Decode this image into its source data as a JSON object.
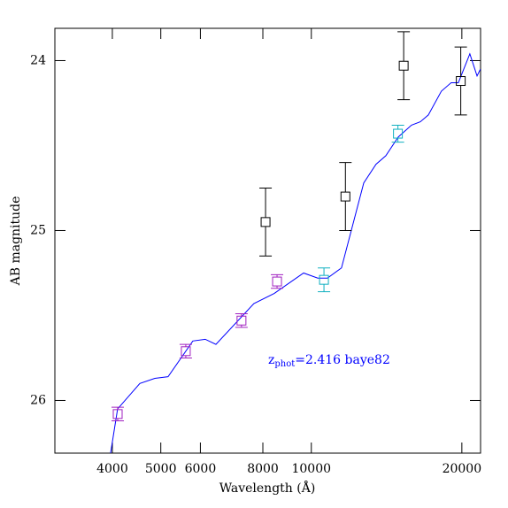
{
  "chart_data": {
    "type": "sed",
    "xlabel": "Wavelength (Å)",
    "ylabel": "AB magnitude",
    "xscale": "log",
    "xlim": [
      3070,
      21800
    ],
    "ylim": [
      26.31,
      23.81
    ],
    "xticks": [
      4000,
      5000,
      6000,
      8000,
      10000,
      20000
    ],
    "yticks": [
      24,
      25,
      26
    ],
    "annotation": {
      "text": "z",
      "sub": "phot",
      "rest": "=2.416 baye82",
      "color": "#0000ff"
    },
    "model": {
      "color": "#0000ff",
      "x": [
        3968,
        4098,
        4540,
        4865,
        5170,
        5795,
        6135,
        6445,
        7675,
        8430,
        9650,
        10300,
        10770,
        11490,
        12730,
        13470,
        14090,
        14920,
        15860,
        16520,
        17140,
        18200,
        19040,
        19680,
        20750,
        21450,
        21790
      ],
      "values": [
        26.31,
        26.05,
        25.9,
        25.87,
        25.86,
        25.65,
        25.64,
        25.67,
        25.43,
        25.37,
        25.25,
        25.28,
        25.28,
        25.22,
        24.72,
        24.61,
        24.56,
        24.45,
        24.38,
        24.36,
        24.32,
        24.18,
        24.13,
        24.13,
        23.96,
        24.09,
        24.05
      ]
    },
    "series": [
      {
        "color": "#a020c0",
        "x": [
          4100,
          5610,
          7250,
          8540
        ],
        "values": [
          26.08,
          25.71,
          25.53,
          25.3
        ],
        "errors": [
          0.04,
          0.04,
          0.04,
          0.04
        ]
      },
      {
        "color": "#10b0c0",
        "x": [
          10600,
          14900
        ],
        "values": [
          25.29,
          24.43
        ],
        "errors": [
          0.07,
          0.05
        ]
      },
      {
        "color": "#000000",
        "x": [
          8100,
          11700,
          15300,
          19900
        ],
        "values": [
          24.95,
          24.8,
          24.03,
          24.12
        ],
        "errors": [
          0.2,
          0.2,
          0.2,
          0.2
        ]
      }
    ]
  }
}
